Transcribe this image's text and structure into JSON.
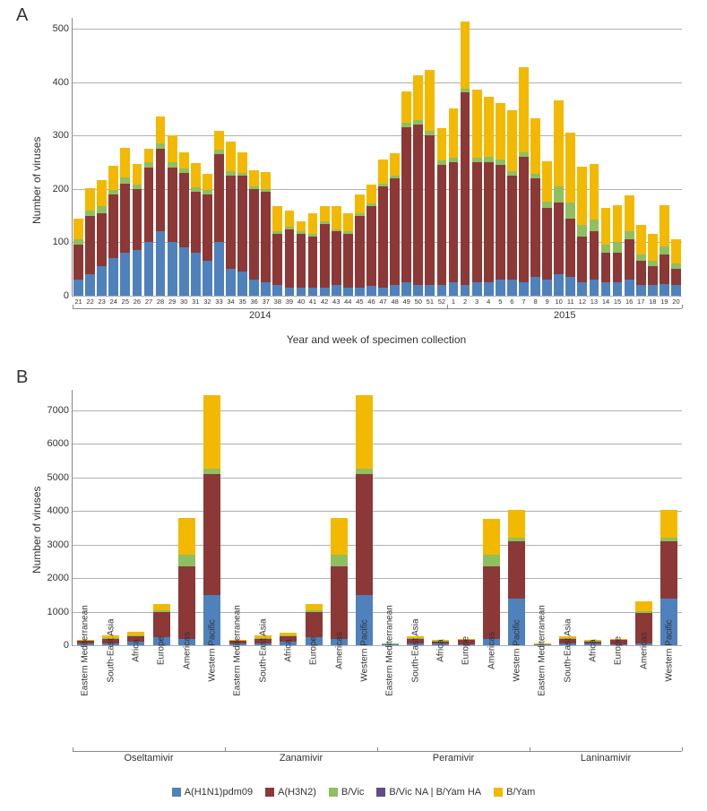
{
  "panelA": {
    "label": "A"
  },
  "panelB": {
    "label": "B"
  },
  "series_colors": {
    "A(H1N1)pdm09": "#4f81bd",
    "A(H3N2)": "#8c3836",
    "B/Vic": "#8fbf5f",
    "B/Vic NA | B/Yam HA": "#5f4b8b",
    "B/Yam": "#f2b900"
  },
  "legend_order": [
    "A(H1N1)pdm09",
    "A(H3N2)",
    "B/Vic",
    "B/Vic NA | B/Yam HA",
    "B/Yam"
  ],
  "chartA": {
    "type": "bar-stacked",
    "ylabel": "Number of viruses",
    "xlabel": "Year and week of specimen collection",
    "ylim": [
      0,
      520
    ],
    "yticks": [
      0,
      100,
      200,
      300,
      400,
      500
    ],
    "group_labels": [
      {
        "label": "2014",
        "start_idx": 0,
        "end_idx": 31
      },
      {
        "label": "2015",
        "start_idx": 32,
        "end_idx": 51
      }
    ],
    "categories": [
      "21",
      "22",
      "23",
      "24",
      "25",
      "26",
      "27",
      "28",
      "29",
      "30",
      "31",
      "32",
      "33",
      "34",
      "35",
      "36",
      "37",
      "38",
      "39",
      "40",
      "41",
      "42",
      "43",
      "44",
      "45",
      "46",
      "47",
      "48",
      "49",
      "50",
      "51",
      "52",
      "1",
      "2",
      "3",
      "4",
      "5",
      "6",
      "7",
      "8",
      "9",
      "10",
      "11",
      "12",
      "13",
      "14",
      "15",
      "16",
      "17",
      "18",
      "19",
      "20"
    ],
    "stacks": [
      {
        "A(H1N1)pdm09": 30,
        "A(H3N2)": 65,
        "B/Vic": 10,
        "B/Yam": 40
      },
      {
        "A(H1N1)pdm09": 40,
        "A(H3N2)": 110,
        "B/Vic": 10,
        "B/Yam": 42
      },
      {
        "A(H1N1)pdm09": 55,
        "A(H3N2)": 100,
        "B/Vic": 12,
        "B/Yam": 50
      },
      {
        "A(H1N1)pdm09": 70,
        "A(H3N2)": 120,
        "B/Vic": 8,
        "B/Yam": 45
      },
      {
        "A(H1N1)pdm09": 80,
        "A(H3N2)": 130,
        "B/Vic": 12,
        "B/Yam": 55
      },
      {
        "A(H1N1)pdm09": 85,
        "A(H3N2)": 115,
        "B/Vic": 8,
        "B/Yam": 38
      },
      {
        "A(H1N1)pdm09": 100,
        "A(H3N2)": 140,
        "B/Vic": 10,
        "B/Yam": 25
      },
      {
        "A(H1N1)pdm09": 120,
        "A(H3N2)": 155,
        "B/Vic": 10,
        "B/Yam": 50
      },
      {
        "A(H1N1)pdm09": 100,
        "A(H3N2)": 140,
        "B/Vic": 10,
        "B/Yam": 50
      },
      {
        "A(H1N1)pdm09": 90,
        "A(H3N2)": 140,
        "B/Vic": 8,
        "B/Yam": 30
      },
      {
        "A(H1N1)pdm09": 80,
        "A(H3N2)": 115,
        "B/Vic": 8,
        "B/Yam": 45
      },
      {
        "A(H1N1)pdm09": 65,
        "A(H3N2)": 125,
        "B/Vic": 8,
        "B/Yam": 30
      },
      {
        "A(H1N1)pdm09": 100,
        "A(H3N2)": 165,
        "B/Vic": 8,
        "B/Yam": 35
      },
      {
        "A(H1N1)pdm09": 50,
        "A(H3N2)": 175,
        "B/Vic": 8,
        "B/Yam": 55
      },
      {
        "A(H1N1)pdm09": 45,
        "A(H3N2)": 180,
        "B/Vic": 5,
        "B/Yam": 38
      },
      {
        "A(H1N1)pdm09": 30,
        "A(H3N2)": 170,
        "B/Vic": 5,
        "B/Yam": 30
      },
      {
        "A(H1N1)pdm09": 25,
        "A(H3N2)": 170,
        "B/Vic": 5,
        "B/Yam": 32
      },
      {
        "A(H1N1)pdm09": 20,
        "A(H3N2)": 95,
        "B/Vic": 5,
        "B/Yam": 48
      },
      {
        "A(H1N1)pdm09": 15,
        "A(H3N2)": 110,
        "B/Vic": 5,
        "B/Yam": 30
      },
      {
        "A(H1N1)pdm09": 15,
        "A(H3N2)": 100,
        "B/Vic": 5,
        "B/Yam": 20
      },
      {
        "A(H1N1)pdm09": 15,
        "A(H3N2)": 95,
        "B/Vic": 5,
        "B/Yam": 40
      },
      {
        "A(H1N1)pdm09": 15,
        "A(H3N2)": 120,
        "B/Vic": 5,
        "B/Yam": 28
      },
      {
        "A(H1N1)pdm09": 20,
        "A(H3N2)": 100,
        "B/Vic": 5,
        "B/Yam": 42
      },
      {
        "A(H1N1)pdm09": 15,
        "A(H3N2)": 100,
        "B/Vic": 5,
        "B/Yam": 35
      },
      {
        "A(H1N1)pdm09": 15,
        "A(H3N2)": 135,
        "B/Vic": 5,
        "B/Yam": 35
      },
      {
        "A(H1N1)pdm09": 18,
        "A(H3N2)": 150,
        "B/Vic": 5,
        "B/Yam": 35
      },
      {
        "A(H1N1)pdm09": 15,
        "A(H3N2)": 190,
        "B/Vic": 5,
        "B/Yam": 45
      },
      {
        "A(H1N1)pdm09": 20,
        "A(H3N2)": 200,
        "B/Vic": 5,
        "B/Yam": 42
      },
      {
        "A(H1N1)pdm09": 25,
        "A(H3N2)": 290,
        "B/Vic": 8,
        "B/Yam": 60
      },
      {
        "A(H1N1)pdm09": 20,
        "A(H3N2)": 300,
        "B/Vic": 8,
        "B/Yam": 85
      },
      {
        "A(H1N1)pdm09": 20,
        "A(H3N2)": 280,
        "B/Vic": 8,
        "B/Yam": 115
      },
      {
        "A(H1N1)pdm09": 20,
        "A(H3N2)": 225,
        "B/Vic": 8,
        "B/Yam": 60
      },
      {
        "A(H1N1)pdm09": 25,
        "A(H3N2)": 225,
        "B/Vic": 8,
        "B/Yam": 92
      },
      {
        "A(H1N1)pdm09": 20,
        "A(H3N2)": 360,
        "B/Vic": 8,
        "B/Yam": 125
      },
      {
        "A(H1N1)pdm09": 25,
        "A(H3N2)": 225,
        "B/Vic": 8,
        "B/Yam": 128
      },
      {
        "A(H1N1)pdm09": 25,
        "A(H3N2)": 225,
        "B/Vic": 10,
        "B/Yam": 112
      },
      {
        "A(H1N1)pdm09": 30,
        "A(H3N2)": 215,
        "B/Vic": 10,
        "B/Yam": 105
      },
      {
        "A(H1N1)pdm09": 30,
        "A(H3N2)": 195,
        "B/Vic": 8,
        "B/Yam": 115
      },
      {
        "A(H1N1)pdm09": 25,
        "A(H3N2)": 235,
        "B/Vic": 8,
        "B/Yam": 160
      },
      {
        "A(H1N1)pdm09": 35,
        "A(H3N2)": 185,
        "B/Vic": 8,
        "B/Yam": 105
      },
      {
        "A(H1N1)pdm09": 30,
        "A(H3N2)": 135,
        "B/Vic": 12,
        "B/Yam": 75
      },
      {
        "A(H1N1)pdm09": 40,
        "A(H3N2)": 135,
        "B/Vic": 30,
        "B/Yam": 160
      },
      {
        "A(H1N1)pdm09": 35,
        "A(H3N2)": 110,
        "B/Vic": 30,
        "B/Yam": 130
      },
      {
        "A(H1N1)pdm09": 25,
        "A(H3N2)": 85,
        "B/Vic": 22,
        "B/Yam": 110
      },
      {
        "A(H1N1)pdm09": 30,
        "A(H3N2)": 90,
        "B/Vic": 22,
        "B/Yam": 105
      },
      {
        "A(H1N1)pdm09": 25,
        "A(H3N2)": 55,
        "B/Vic": 15,
        "B/Yam": 70
      },
      {
        "A(H1N1)pdm09": 25,
        "A(H3N2)": 55,
        "B/Vic": 20,
        "B/Yam": 70
      },
      {
        "A(H1N1)pdm09": 30,
        "A(H3N2)": 75,
        "B/Vic": 15,
        "B/Yam": 68
      },
      {
        "A(H1N1)pdm09": 20,
        "A(H3N2)": 45,
        "B/Vic": 12,
        "B/Yam": 55
      },
      {
        "A(H1N1)pdm09": 20,
        "A(H3N2)": 35,
        "B/Vic": 10,
        "B/Yam": 50
      },
      {
        "A(H1N1)pdm09": 22,
        "A(H3N2)": 55,
        "B/Vic": 15,
        "B/Yam": 78
      },
      {
        "A(H1N1)pdm09": 20,
        "A(H3N2)": 30,
        "B/Vic": 10,
        "B/Yam": 45
      }
    ]
  },
  "chartB": {
    "type": "bar-stacked",
    "ylabel": "Number of viruses",
    "ylim": [
      0,
      7600
    ],
    "yticks": [
      0,
      1000,
      2000,
      3000,
      4000,
      5000,
      6000,
      7000
    ],
    "group_labels": [
      {
        "label": "Oseltamivir",
        "start_idx": 0,
        "end_idx": 5
      },
      {
        "label": "Zanamivir",
        "start_idx": 6,
        "end_idx": 11
      },
      {
        "label": "Peramivir",
        "start_idx": 12,
        "end_idx": 17
      },
      {
        "label": "Laninamivir",
        "start_idx": 18,
        "end_idx": 23
      }
    ],
    "categories": [
      "Eastern Mediterranean",
      "South-East Asia",
      "Africa",
      "Europe",
      "Americas",
      "Western Pacific",
      "Eastern Mediterranean",
      "South-East Asia",
      "Africa",
      "Europe",
      "Americas",
      "Western Pacific",
      "Eastern Mediterranean",
      "South-East Asia",
      "Africa",
      "Europe",
      "Americas",
      "Western Pacific",
      "Eastern Mediterranean",
      "South-East Asia",
      "Africa",
      "Europe",
      "Americas",
      "Western Pacific"
    ],
    "stacks": [
      {
        "A(H1N1)pdm09": 60,
        "A(H3N2)": 70,
        "B/Vic": 10,
        "B/Yam": 30
      },
      {
        "A(H1N1)pdm09": 60,
        "A(H3N2)": 140,
        "B/Vic": 20,
        "B/Yam": 80
      },
      {
        "A(H1N1)pdm09": 100,
        "A(H3N2)": 180,
        "B/Vic": 20,
        "B/Yam": 90
      },
      {
        "A(H1N1)pdm09": 250,
        "A(H3N2)": 750,
        "B/Vic": 50,
        "B/Yam": 180
      },
      {
        "A(H1N1)pdm09": 200,
        "A(H3N2)": 2150,
        "B/Vic": 350,
        "B/Yam": 1100
      },
      {
        "A(H1N1)pdm09": 1500,
        "A(H3N2)": 3600,
        "B/Vic": 150,
        "B/Yam": 2200
      },
      {
        "A(H1N1)pdm09": 60,
        "A(H3N2)": 70,
        "B/Vic": 10,
        "B/Yam": 30
      },
      {
        "A(H1N1)pdm09": 60,
        "A(H3N2)": 140,
        "B/Vic": 20,
        "B/Yam": 70
      },
      {
        "A(H1N1)pdm09": 100,
        "A(H3N2)": 180,
        "B/Vic": 20,
        "B/Yam": 80
      },
      {
        "A(H1N1)pdm09": 250,
        "A(H3N2)": 750,
        "B/Vic": 40,
        "B/Yam": 180
      },
      {
        "A(H1N1)pdm09": 200,
        "A(H3N2)": 2150,
        "B/Vic": 350,
        "B/Yam": 1100
      },
      {
        "A(H1N1)pdm09": 1500,
        "A(H3N2)": 3600,
        "B/Vic": 150,
        "B/Yam": 2200
      },
      {
        "A(H1N1)pdm09": 20,
        "A(H3N2)": 20,
        "B/Vic": 5,
        "B/Yam": 10
      },
      {
        "A(H1N1)pdm09": 60,
        "A(H3N2)": 130,
        "B/Vic": 20,
        "B/Yam": 55
      },
      {
        "A(H1N1)pdm09": 50,
        "A(H3N2)": 70,
        "B/Vic": 10,
        "B/Yam": 20
      },
      {
        "A(H1N1)pdm09": 30,
        "A(H3N2)": 120,
        "B/Vic": 10,
        "B/Yam": 30
      },
      {
        "A(H1N1)pdm09": 200,
        "A(H3N2)": 2150,
        "B/Vic": 350,
        "B/Yam": 1050
      },
      {
        "A(H1N1)pdm09": 1400,
        "A(H3N2)": 1700,
        "B/Vic": 100,
        "B/Yam": 830
      },
      {
        "A(H1N1)pdm09": 15,
        "A(H3N2)": 15,
        "B/Vic": 5,
        "B/Yam": 10
      },
      {
        "A(H1N1)pdm09": 60,
        "A(H3N2)": 130,
        "B/Vic": 20,
        "B/Yam": 55
      },
      {
        "A(H1N1)pdm09": 50,
        "A(H3N2)": 70,
        "B/Vic": 10,
        "B/Yam": 20
      },
      {
        "A(H1N1)pdm09": 30,
        "A(H3N2)": 120,
        "B/Vic": 10,
        "B/Yam": 30
      },
      {
        "A(H1N1)pdm09": 60,
        "A(H3N2)": 900,
        "B/Vic": 60,
        "B/Yam": 280
      },
      {
        "A(H1N1)pdm09": 1400,
        "A(H3N2)": 1700,
        "B/Vic": 100,
        "B/Yam": 830
      }
    ]
  }
}
